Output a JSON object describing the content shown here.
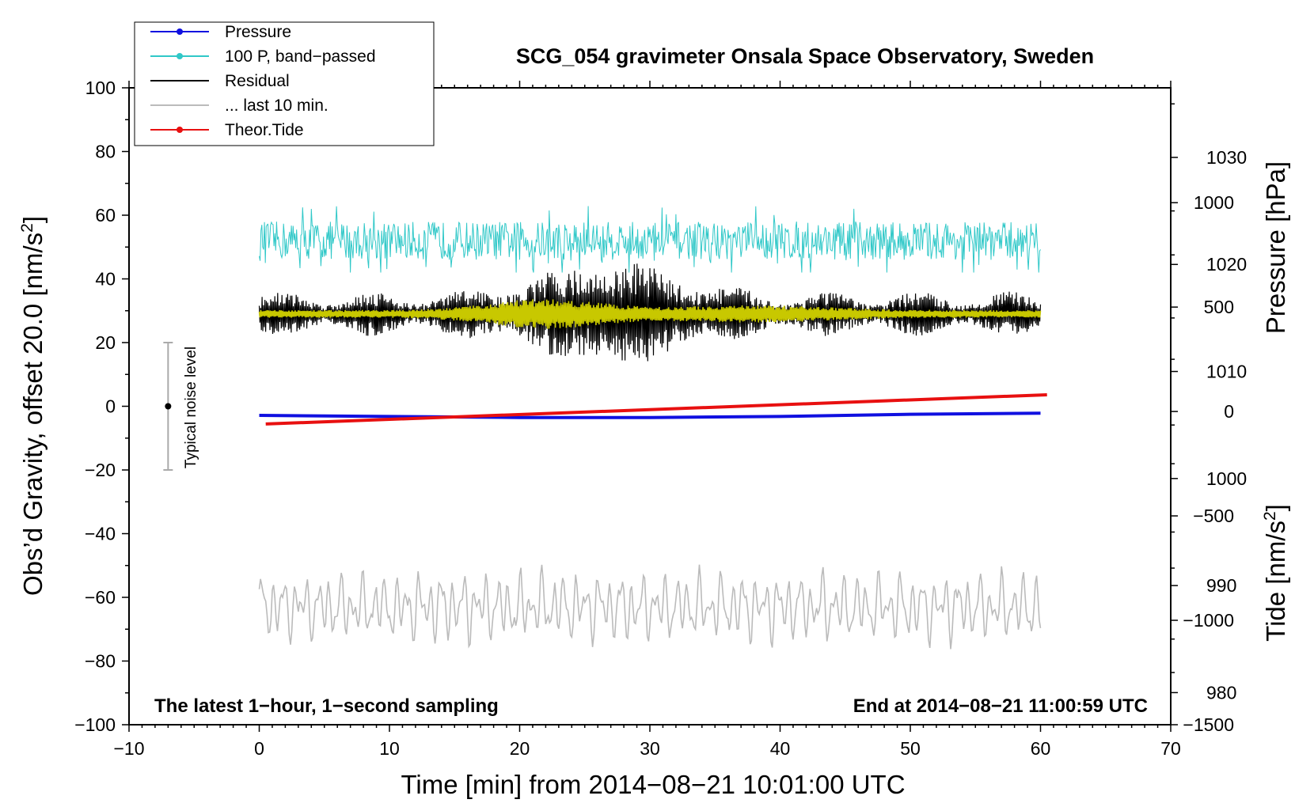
{
  "chart_data": {
    "type": "line",
    "title": "SCG_054 gravimeter Onsala Space Observatory, Sweden",
    "xlabel": "Time [min] from 2014−08−21 10:01:00 UTC",
    "ylabel_left": "Obs’d Gravity, offset 20.0 [nm/s",
    "ylabel_right_top": "Pressure [hPa]",
    "ylabel_right_bottom": "Tide [nm/s",
    "superscript": "2",
    "closing_bracket": "]",
    "xlim": [
      -10,
      70
    ],
    "ylim": [
      -100,
      100
    ],
    "pressure_lim": [
      977,
      1036.5
    ],
    "tide_lim": [
      -1500,
      1550
    ],
    "x_ticks": [
      "−10",
      "0",
      "10",
      "20",
      "30",
      "40",
      "50",
      "60",
      "70"
    ],
    "x_tick_values": [
      -10,
      0,
      10,
      20,
      30,
      40,
      50,
      60,
      70
    ],
    "y_ticks": [
      "100",
      "80",
      "60",
      "40",
      "20",
      "0",
      "−20",
      "−40",
      "−60",
      "−80",
      "−100"
    ],
    "y_tick_values": [
      100,
      80,
      60,
      40,
      20,
      0,
      -20,
      -40,
      -60,
      -80,
      -100
    ],
    "pressure_ticks": [
      "1030",
      "1020",
      "1010",
      "1000",
      "990",
      "980"
    ],
    "pressure_tick_values": [
      1030,
      1020,
      1010,
      1000,
      990,
      980
    ],
    "tide_ticks": [
      "1000",
      "500",
      "0",
      "−500",
      "−1000",
      "−1500"
    ],
    "tide_tick_values": [
      1000,
      500,
      0,
      -500,
      -1000,
      -1500
    ],
    "legend": [
      {
        "label": "Pressure",
        "color": "#1010e0",
        "marker": true
      },
      {
        "label": "100 P, band−passed",
        "color": "#30c8c8",
        "marker": true
      },
      {
        "label": "Residual",
        "color": "#000000",
        "marker": false
      },
      {
        "label": "... last 10 min.",
        "color": "#bbbbbb",
        "marker": false
      },
      {
        "label": "Theor.Tide",
        "color": "#e81010",
        "marker": true
      }
    ],
    "annotations": {
      "bottom_left": "The latest 1−hour, 1−second sampling",
      "bottom_right": "End at 2014−08−21 11:00:59 UTC",
      "noise_label": "Typical noise level"
    },
    "noise_bar": {
      "x": -7,
      "center": 0,
      "low": -20,
      "high": 20
    },
    "series": [
      {
        "name": "Pressure",
        "color": "#1010e0",
        "axis": "pressure",
        "x": [
          0,
          10,
          20,
          30,
          40,
          50,
          60
        ],
        "values": [
          1005.9,
          1005.8,
          1005.7,
          1005.7,
          1005.8,
          1006.0,
          1006.1
        ]
      },
      {
        "name": "100 P, band−passed",
        "color": "#30c8c8",
        "axis": "gravity",
        "x_range": [
          0,
          60
        ],
        "center": 52,
        "amplitude": 6,
        "min": 42,
        "max": 64
      },
      {
        "name": "Residual",
        "color": "#000000",
        "axis": "gravity",
        "x_range": [
          0,
          60
        ],
        "center": 29,
        "min": 6,
        "max": 51
      },
      {
        "name": "Residual (smoothed)",
        "color": "#c8c800",
        "axis": "gravity",
        "x_range": [
          0,
          60
        ],
        "center": 29,
        "min": 24,
        "max": 34
      },
      {
        "name": "... last 10 min.",
        "color": "#bbbbbb",
        "axis": "gravity",
        "x_range": [
          0,
          60
        ],
        "center": -63,
        "min": -77,
        "max": -48
      },
      {
        "name": "Theor.Tide",
        "color": "#e81010",
        "axis": "tide",
        "x": [
          0.5,
          60.5
        ],
        "values": [
          -60,
          80
        ]
      }
    ]
  }
}
